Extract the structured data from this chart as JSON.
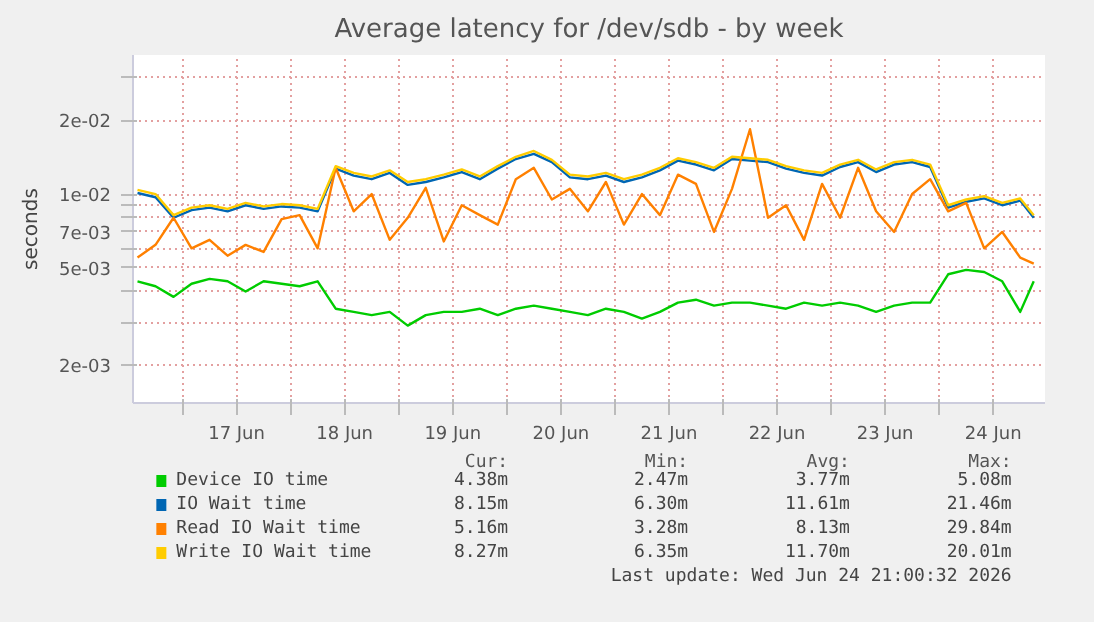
{
  "chart_data": {
    "type": "line",
    "title": "Average latency for /dev/sdb - by week",
    "ylabel": "seconds",
    "log": "y",
    "grid": true,
    "legend": "bottom",
    "marker": "none",
    "line_style": "solid",
    "x": [
      "2026-06-16T14:00",
      "2026-06-16T18:00",
      "2026-06-16T22:00",
      "2026-06-17T02:00",
      "2026-06-17T06:00",
      "2026-06-17T10:00",
      "2026-06-17T14:00",
      "2026-06-17T18:00",
      "2026-06-17T22:00",
      "2026-06-18T02:00",
      "2026-06-18T06:00",
      "2026-06-18T10:00",
      "2026-06-18T14:00",
      "2026-06-18T18:00",
      "2026-06-18T22:00",
      "2026-06-19T02:00",
      "2026-06-19T06:00",
      "2026-06-19T10:00",
      "2026-06-19T14:00",
      "2026-06-19T18:00",
      "2026-06-19T22:00",
      "2026-06-20T02:00",
      "2026-06-20T06:00",
      "2026-06-20T10:00",
      "2026-06-20T14:00",
      "2026-06-20T18:00",
      "2026-06-20T22:00",
      "2026-06-21T02:00",
      "2026-06-21T06:00",
      "2026-06-21T10:00",
      "2026-06-21T14:00",
      "2026-06-21T18:00",
      "2026-06-21T22:00",
      "2026-06-22T02:00",
      "2026-06-22T06:00",
      "2026-06-22T10:00",
      "2026-06-22T14:00",
      "2026-06-22T18:00",
      "2026-06-22T22:00",
      "2026-06-23T02:00",
      "2026-06-23T06:00",
      "2026-06-23T10:00",
      "2026-06-23T14:00",
      "2026-06-23T18:00",
      "2026-06-23T22:00",
      "2026-06-24T02:00",
      "2026-06-24T06:00",
      "2026-06-24T10:00",
      "2026-06-24T14:00",
      "2026-06-24T18:00",
      "2026-06-24T21:00"
    ],
    "xlim": [
      "2026-06-16T13:00",
      "2026-06-24T23:30"
    ],
    "xticks": [
      {
        "value": "2026-06-17T12:00",
        "label": "17 Jun"
      },
      {
        "value": "2026-06-18T12:00",
        "label": "18 Jun"
      },
      {
        "value": "2026-06-19T12:00",
        "label": "19 Jun"
      },
      {
        "value": "2026-06-20T12:00",
        "label": "20 Jun"
      },
      {
        "value": "2026-06-21T12:00",
        "label": "21 Jun"
      },
      {
        "value": "2026-06-22T12:00",
        "label": "22 Jun"
      },
      {
        "value": "2026-06-23T12:00",
        "label": "23 Jun"
      },
      {
        "value": "2026-06-24T12:00",
        "label": "24 Jun"
      },
      {
        "value": "2026-06-17T00:00",
        "label": null
      },
      {
        "value": "2026-06-18T00:00",
        "label": null
      },
      {
        "value": "2026-06-19T00:00",
        "label": null
      },
      {
        "value": "2026-06-20T00:00",
        "label": null
      },
      {
        "value": "2026-06-21T00:00",
        "label": null
      },
      {
        "value": "2026-06-22T00:00",
        "label": null
      },
      {
        "value": "2026-06-23T00:00",
        "label": null
      },
      {
        "value": "2026-06-24T00:00",
        "label": null
      }
    ],
    "ylim": [
      0.0014,
      0.037
    ],
    "yticks": [
      {
        "value": 0.002,
        "label": "2e-03"
      },
      {
        "value": 0.005,
        "label": "5e-03"
      },
      {
        "value": 0.007,
        "label": "7e-03"
      },
      {
        "value": 0.01,
        "label": "1e-02"
      },
      {
        "value": 0.02,
        "label": "2e-02"
      },
      {
        "value": 0.003,
        "label": null
      },
      {
        "value": 0.004,
        "label": null
      },
      {
        "value": 0.006,
        "label": null
      },
      {
        "value": 0.008,
        "label": null
      },
      {
        "value": 0.009,
        "label": null
      },
      {
        "value": 0.03,
        "label": null
      }
    ],
    "series": [
      {
        "name": "Device IO time",
        "color": "#00cc00",
        "values": [
          0.0044,
          0.0042,
          0.0038,
          0.0043,
          0.0045,
          0.0044,
          0.004,
          0.0044,
          0.0043,
          0.0042,
          0.0044,
          0.0034,
          0.0033,
          0.0032,
          0.0033,
          0.0029,
          0.0032,
          0.0033,
          0.0033,
          0.0034,
          0.0032,
          0.0034,
          0.0035,
          0.0034,
          0.0033,
          0.0032,
          0.0034,
          0.0033,
          0.0031,
          0.0033,
          0.0036,
          0.0037,
          0.0035,
          0.0036,
          0.0036,
          0.0035,
          0.0034,
          0.0036,
          0.0035,
          0.0036,
          0.0035,
          0.0033,
          0.0035,
          0.0036,
          0.0036,
          0.0047,
          0.0049,
          0.0048,
          0.0044,
          0.0033,
          0.0044
        ]
      },
      {
        "name": "IO Wait time",
        "color": "#0066b3",
        "values": [
          0.0101,
          0.0097,
          0.008,
          0.0086,
          0.0088,
          0.0085,
          0.009,
          0.0087,
          0.0089,
          0.0088,
          0.0085,
          0.0127,
          0.0119,
          0.0115,
          0.0122,
          0.0109,
          0.0112,
          0.0117,
          0.0123,
          0.0115,
          0.0127,
          0.0139,
          0.0146,
          0.0135,
          0.0117,
          0.0115,
          0.0119,
          0.0112,
          0.0117,
          0.0125,
          0.0137,
          0.0132,
          0.0125,
          0.0139,
          0.0137,
          0.0135,
          0.0127,
          0.0122,
          0.0119,
          0.0129,
          0.0135,
          0.0123,
          0.0132,
          0.0135,
          0.0129,
          0.0088,
          0.0093,
          0.0096,
          0.009,
          0.0094,
          0.008
        ]
      },
      {
        "name": "Read IO Wait time",
        "color": "#ff8000",
        "values": [
          0.0055,
          0.0062,
          0.008,
          0.006,
          0.0065,
          0.0056,
          0.0062,
          0.0058,
          0.0079,
          0.0082,
          0.006,
          0.0128,
          0.0085,
          0.01,
          0.0065,
          0.008,
          0.0106,
          0.0064,
          0.009,
          0.0082,
          0.0075,
          0.0115,
          0.0128,
          0.0095,
          0.0105,
          0.0085,
          0.0112,
          0.0075,
          0.01,
          0.0082,
          0.012,
          0.011,
          0.007,
          0.0105,
          0.0184,
          0.008,
          0.009,
          0.0065,
          0.011,
          0.008,
          0.0128,
          0.0085,
          0.007,
          0.01,
          0.0115,
          0.0085,
          0.0092,
          0.006,
          0.007,
          0.0055,
          0.0052
        ]
      },
      {
        "name": "Write IO Wait time",
        "color": "#ffcc00",
        "values": [
          0.0104,
          0.01,
          0.0082,
          0.0088,
          0.009,
          0.0087,
          0.0092,
          0.0089,
          0.0091,
          0.009,
          0.0087,
          0.013,
          0.0122,
          0.0118,
          0.0125,
          0.0112,
          0.0115,
          0.012,
          0.0126,
          0.0118,
          0.013,
          0.0142,
          0.015,
          0.0138,
          0.012,
          0.0118,
          0.0122,
          0.0115,
          0.012,
          0.0128,
          0.014,
          0.0135,
          0.0128,
          0.0142,
          0.014,
          0.0138,
          0.013,
          0.0125,
          0.0122,
          0.0132,
          0.0138,
          0.0126,
          0.0135,
          0.0138,
          0.0132,
          0.009,
          0.0095,
          0.0098,
          0.0092,
          0.0096,
          0.0082
        ]
      }
    ],
    "annotations": [
      "Cur:",
      "Min:",
      "Avg:",
      "Max:",
      "4.38m",
      "2.47m",
      "3.77m",
      "5.08m",
      "8.15m",
      "6.30m",
      "11.61m",
      "21.46m",
      "5.16m",
      "3.28m",
      "8.13m",
      "29.84m",
      "8.27m",
      "6.35m",
      "11.70m",
      "20.01m",
      "Last update: Wed Jun 24 21:00:32 2026"
    ]
  }
}
